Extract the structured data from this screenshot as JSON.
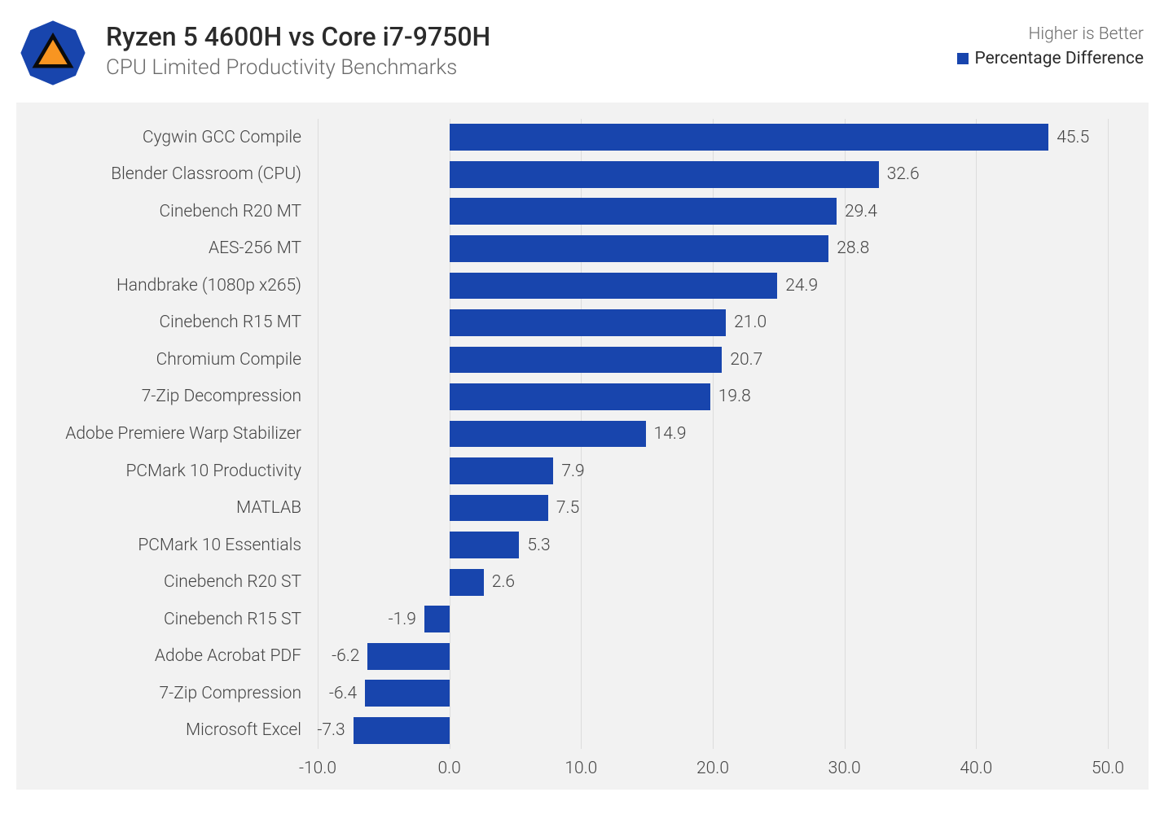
{
  "header": {
    "title": "Ryzen 5 4600H vs Core i7-9750H",
    "subtitle": "CPU Limited Productivity Benchmarks",
    "caption": "Higher is Better",
    "legend_label": "Percentage Difference"
  },
  "chart": {
    "type": "bar-horizontal",
    "bar_color": "#1845ad",
    "background_color": "#f2f2f2",
    "grid_color": "#dcdcdc",
    "label_color": "#444444",
    "label_fontsize": 21,
    "title_fontsize": 32,
    "subtitle_fontsize": 26,
    "xmin": -10.0,
    "xmax": 50.0,
    "xtick_step": 10.0,
    "xticks": [
      "-10.0",
      "0.0",
      "10.0",
      "20.0",
      "30.0",
      "40.0",
      "50.0"
    ],
    "series": [
      {
        "label": "Cygwin GCC Compile",
        "value": 45.5
      },
      {
        "label": "Blender Classroom (CPU)",
        "value": 32.6
      },
      {
        "label": "Cinebench R20 MT",
        "value": 29.4
      },
      {
        "label": "AES-256 MT",
        "value": 28.8
      },
      {
        "label": "Handbrake (1080p x265)",
        "value": 24.9
      },
      {
        "label": "Cinebench R15 MT",
        "value": 21.0
      },
      {
        "label": "Chromium Compile",
        "value": 20.7
      },
      {
        "label": "7-Zip Decompression",
        "value": 19.8
      },
      {
        "label": "Adobe Premiere Warp Stabilizer",
        "value": 14.9
      },
      {
        "label": "PCMark 10 Productivity",
        "value": 7.9
      },
      {
        "label": "MATLAB",
        "value": 7.5
      },
      {
        "label": "PCMark 10 Essentials",
        "value": 5.3
      },
      {
        "label": "Cinebench R20 ST",
        "value": 2.6
      },
      {
        "label": "Cinebench R15 ST",
        "value": -1.9
      },
      {
        "label": "Adobe Acrobat PDF",
        "value": -6.2
      },
      {
        "label": "7-Zip Compression",
        "value": -6.4
      },
      {
        "label": "Microsoft Excel",
        "value": -7.3
      }
    ]
  },
  "logo": {
    "bg_color": "#1845ad",
    "tri_color": "#f89521",
    "tri_stroke": "#0b0b0b"
  }
}
